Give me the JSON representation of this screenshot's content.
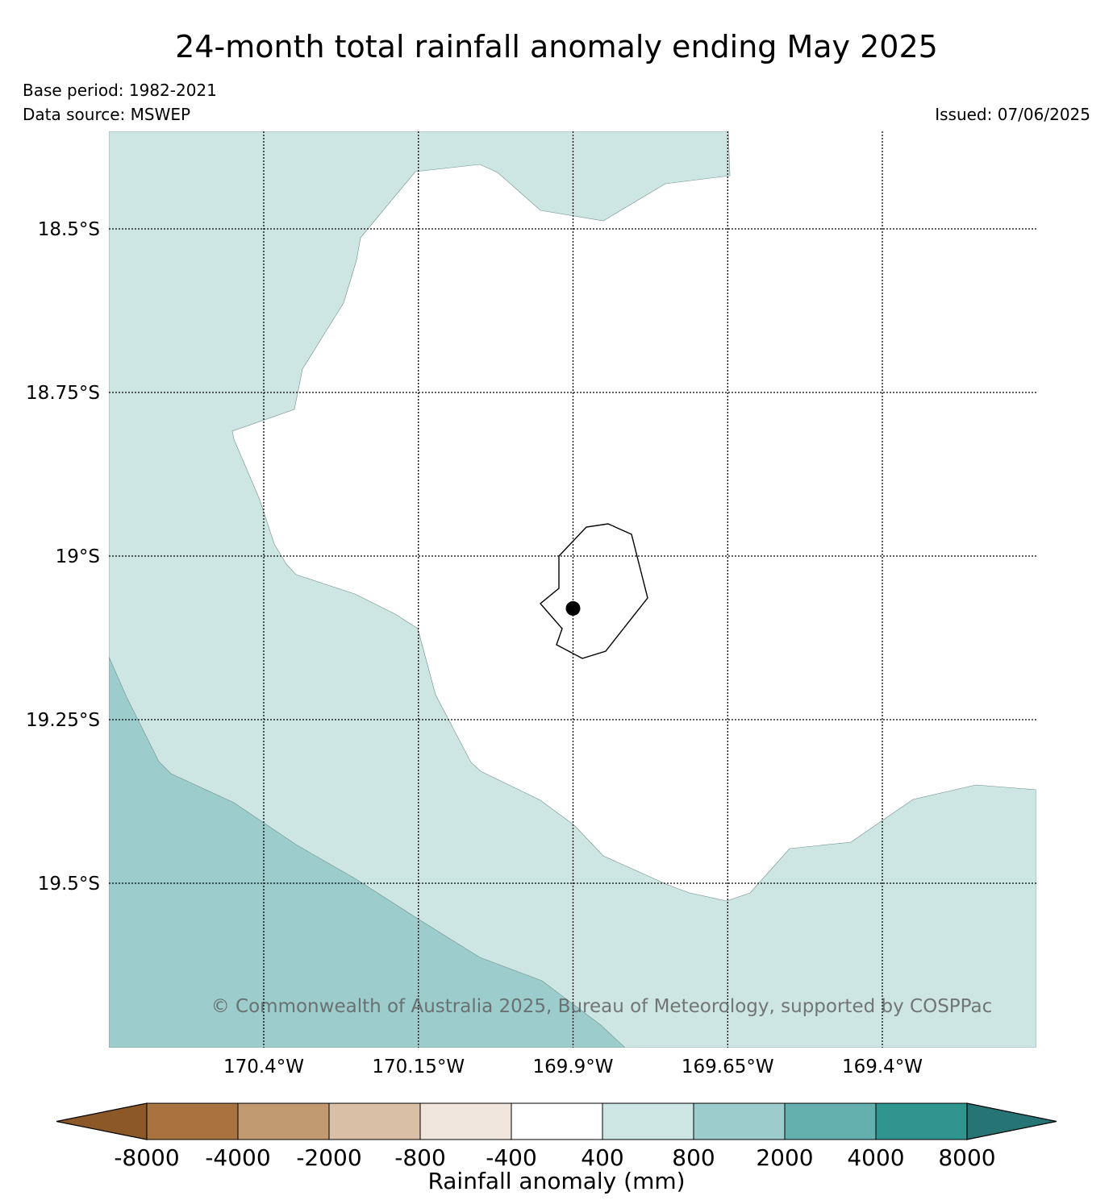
{
  "title": "24-month total rainfall anomaly ending May 2025",
  "base_period": "Base period: 1982-2021",
  "data_source": "Data source: MSWEP",
  "issued": "Issued: 07/06/2025",
  "copyright": "© Commonwealth of Australia 2025, Bureau of Meteorology, supported by COSPPac",
  "map": {
    "lon_range": [
      -170.65,
      -169.15
    ],
    "lat_range": [
      -18.35,
      -19.75
    ],
    "lon_ticks": [
      {
        "value": -170.4,
        "label": "170.4°W"
      },
      {
        "value": -170.15,
        "label": "170.15°W"
      },
      {
        "value": -169.9,
        "label": "169.9°W"
      },
      {
        "value": -169.65,
        "label": "169.65°W"
      },
      {
        "value": -169.4,
        "label": "169.4°W"
      }
    ],
    "lat_ticks": [
      {
        "value": -18.5,
        "label": "18.5°S"
      },
      {
        "value": -18.75,
        "label": "18.75°S"
      },
      {
        "value": -19.0,
        "label": "19°S"
      },
      {
        "value": -19.25,
        "label": "19.25°S"
      },
      {
        "value": -19.5,
        "label": "19.5°S"
      }
    ],
    "regions": [
      {
        "name": "anomaly 400 to 800 mm",
        "color": "#cde6e4"
      },
      {
        "name": "anomaly 800 to 2000 mm",
        "color": "#9ccccc"
      },
      {
        "name": "anomaly -400 to 400 mm",
        "color": "#ffffff"
      }
    ],
    "station_marker": {
      "lon": -169.9,
      "lat": -19.08
    }
  },
  "colorbar": {
    "label": "Rainfall anomaly (mm)",
    "tick_labels": [
      "-8000",
      "-4000",
      "-2000",
      "-800",
      "-400",
      "400",
      "800",
      "2000",
      "4000",
      "8000"
    ],
    "colors": [
      "#8c5828",
      "#a8733f",
      "#c19a71",
      "#d9bfa6",
      "#f0e6dd",
      "#ffffff",
      "#cde6e4",
      "#9ccccc",
      "#63b0ae",
      "#30958f",
      "#267574"
    ]
  }
}
